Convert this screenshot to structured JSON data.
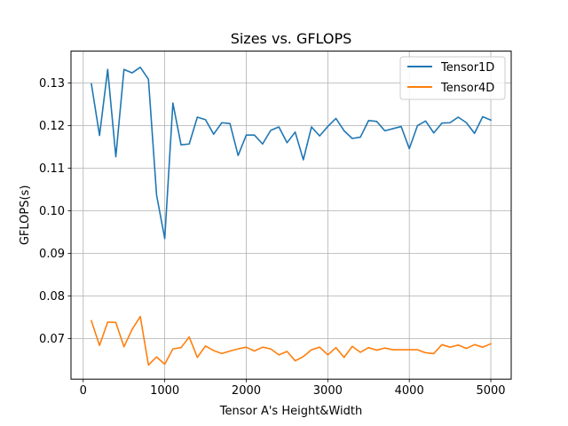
{
  "chart_data": {
    "type": "line",
    "title": "Sizes vs. GFLOPS",
    "xlabel": "Tensor A's Height&Width",
    "ylabel": "GFLOPS(s)",
    "xlim": [
      -150,
      5250
    ],
    "ylim": [
      0.0605,
      0.1375
    ],
    "xticks": [
      0,
      1000,
      2000,
      3000,
      4000,
      5000
    ],
    "xtick_labels": [
      "0",
      "1000",
      "2000",
      "3000",
      "4000",
      "5000"
    ],
    "yticks": [
      0.07,
      0.08,
      0.09,
      0.1,
      0.11,
      0.12,
      0.13
    ],
    "ytick_labels": [
      "0.07",
      "0.08",
      "0.09",
      "0.10",
      "0.11",
      "0.12",
      "0.13"
    ],
    "grid": true,
    "legend_position": "top-right",
    "x": [
      100,
      200,
      300,
      400,
      500,
      600,
      700,
      800,
      900,
      1000,
      1100,
      1200,
      1300,
      1400,
      1500,
      1600,
      1700,
      1800,
      1900,
      2000,
      2100,
      2200,
      2300,
      2400,
      2500,
      2600,
      2700,
      2800,
      2900,
      3000,
      3100,
      3200,
      3300,
      3400,
      3500,
      3600,
      3700,
      3800,
      3900,
      4000,
      4100,
      4200,
      4300,
      4400,
      4500,
      4600,
      4700,
      4800,
      4900,
      5000
    ],
    "series": [
      {
        "name": "Tensor1D",
        "color": "#1f77b4",
        "values": [
          0.1298,
          0.1177,
          0.1332,
          0.1127,
          0.1332,
          0.1324,
          0.1337,
          0.1309,
          0.1037,
          0.0935,
          0.1253,
          0.1155,
          0.1157,
          0.122,
          0.1214,
          0.118,
          0.1207,
          0.1205,
          0.113,
          0.1178,
          0.1178,
          0.1157,
          0.1189,
          0.1197,
          0.116,
          0.1185,
          0.112,
          0.1197,
          0.1176,
          0.1198,
          0.1217,
          0.1188,
          0.117,
          0.1173,
          0.1212,
          0.121,
          0.1188,
          0.1193,
          0.1198,
          0.1146,
          0.12,
          0.1211,
          0.1183,
          0.1206,
          0.1207,
          0.122,
          0.1207,
          0.1182,
          0.1221,
          0.1213
        ]
      },
      {
        "name": "Tensor4D",
        "color": "#ff7f0e",
        "values": [
          0.0742,
          0.0684,
          0.0739,
          0.0738,
          0.0681,
          0.0722,
          0.0752,
          0.0638,
          0.0657,
          0.064,
          0.0676,
          0.0679,
          0.0704,
          0.0656,
          0.0683,
          0.0672,
          0.0665,
          0.0671,
          0.0676,
          0.068,
          0.0671,
          0.068,
          0.0676,
          0.0662,
          0.067,
          0.0648,
          0.0658,
          0.0674,
          0.068,
          0.0662,
          0.0679,
          0.0656,
          0.0682,
          0.0668,
          0.0679,
          0.0673,
          0.0678,
          0.0674,
          0.0674,
          0.0674,
          0.0674,
          0.0667,
          0.0665,
          0.0686,
          0.068,
          0.0685,
          0.0677,
          0.0686,
          0.068,
          0.0688
        ]
      }
    ]
  }
}
